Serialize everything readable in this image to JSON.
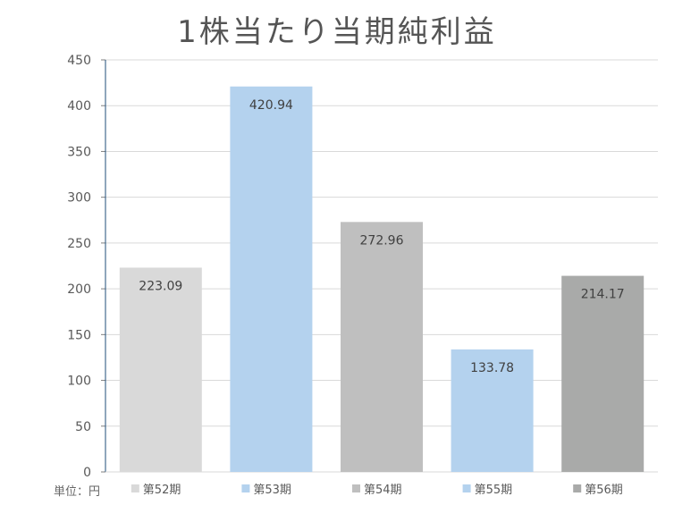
{
  "chart_data": {
    "type": "bar",
    "title": "1株当たり当期純利益",
    "unit_label": "単位：円",
    "categories": [
      "第52期",
      "第53期",
      "第54期",
      "第55期",
      "第56期"
    ],
    "values": [
      223.09,
      420.94,
      272.96,
      133.78,
      214.17
    ],
    "value_labels": [
      "223.09",
      "420.94",
      "272.96",
      "133.78",
      "214.17"
    ],
    "colors": [
      "#d9d9d9",
      "#b4d2ee",
      "#bfbfbf",
      "#b4d2ee",
      "#a9aaa9"
    ],
    "ylim": [
      0,
      450
    ],
    "yticks": [
      "0",
      "50",
      "100",
      "150",
      "200",
      "250",
      "300",
      "350",
      "400",
      "450"
    ],
    "grid": true,
    "legend_position": "bottom"
  }
}
